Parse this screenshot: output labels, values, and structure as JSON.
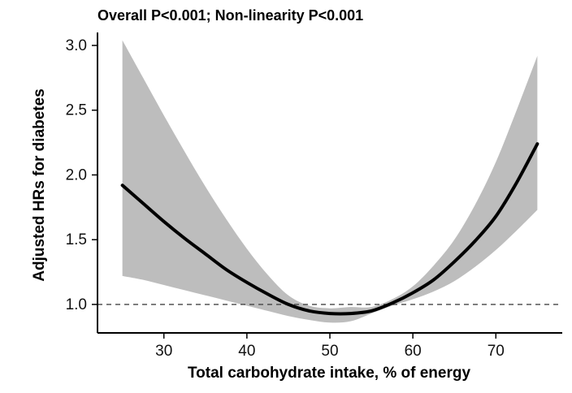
{
  "chart_data": {
    "type": "line",
    "title": "Overall P<0.001; Non-linearity P<0.001",
    "xlabel": "Total carbohydrate intake, % of energy",
    "ylabel": "Adjusted HRs for diabetes",
    "xlim": [
      22,
      78
    ],
    "ylim": [
      0.78,
      3.1
    ],
    "x_ticks": [
      30,
      40,
      50,
      60,
      70
    ],
    "x_tick_labels": [
      "30",
      "40",
      "50",
      "60",
      "70"
    ],
    "y_ticks": [
      1.0,
      1.5,
      2.0,
      2.5,
      3.0
    ],
    "y_tick_labels": [
      "1.0",
      "1.5",
      "2.0",
      "2.5",
      "3.0"
    ],
    "reference_line": {
      "y": 1.0,
      "style": "dashed"
    },
    "grid": false,
    "series": [
      {
        "name": "Adjusted HR",
        "x": [
          25,
          27.5,
          30,
          32.5,
          35,
          37.5,
          40,
          42.5,
          45,
          47.5,
          50,
          52.5,
          55,
          57.5,
          60,
          62.5,
          65,
          67.5,
          70,
          72.5,
          75
        ],
        "y": [
          1.92,
          1.78,
          1.64,
          1.51,
          1.39,
          1.27,
          1.17,
          1.08,
          1.0,
          0.95,
          0.93,
          0.93,
          0.95,
          1.01,
          1.09,
          1.19,
          1.33,
          1.49,
          1.68,
          1.94,
          2.24
        ],
        "lower": [
          1.22,
          1.19,
          1.15,
          1.11,
          1.07,
          1.03,
          0.99,
          0.95,
          0.91,
          0.88,
          0.86,
          0.87,
          0.93,
          0.99,
          1.04,
          1.1,
          1.18,
          1.29,
          1.42,
          1.57,
          1.73
        ],
        "upper": [
          3.04,
          2.75,
          2.46,
          2.18,
          1.91,
          1.66,
          1.43,
          1.23,
          1.07,
          0.99,
          0.97,
          0.98,
          0.98,
          1.04,
          1.14,
          1.3,
          1.5,
          1.77,
          2.1,
          2.5,
          2.92
        ]
      }
    ]
  }
}
